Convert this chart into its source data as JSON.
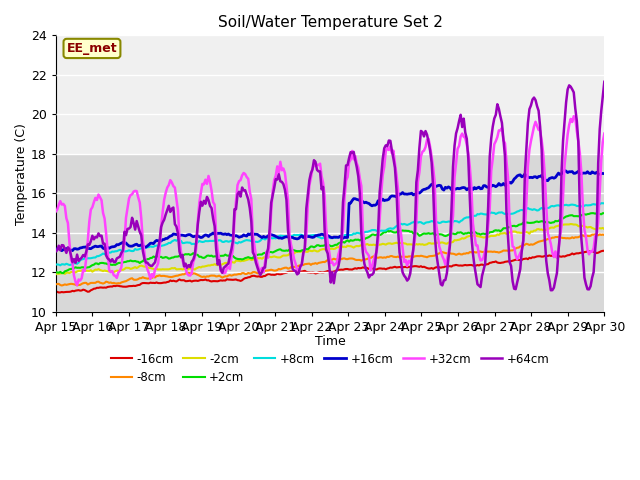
{
  "title": "Soil/Water Temperature Set 2",
  "xlabel": "Time",
  "ylabel": "Temperature (C)",
  "ylim": [
    10,
    24
  ],
  "xlim": [
    0,
    15
  ],
  "x_tick_labels": [
    "Apr 15",
    "Apr 16",
    "Apr 17",
    "Apr 18",
    "Apr 19",
    "Apr 20",
    "Apr 21",
    "Apr 22",
    "Apr 23",
    "Apr 24",
    "Apr 25",
    "Apr 26",
    "Apr 27",
    "Apr 28",
    "Apr 29",
    "Apr 30"
  ],
  "series_labels": [
    "-16cm",
    "-8cm",
    "-2cm",
    "+2cm",
    "+8cm",
    "+16cm",
    "+32cm",
    "+64cm"
  ],
  "series_colors": [
    "#dd0000",
    "#ff8800",
    "#dddd00",
    "#00dd00",
    "#00dddd",
    "#0000cc",
    "#ff44ff",
    "#9900bb"
  ],
  "series_linewidths": [
    1.5,
    1.5,
    1.5,
    1.5,
    1.5,
    2.0,
    1.8,
    1.8
  ],
  "annotation_text": "EE_met",
  "background_color": "#ffffff",
  "plot_bg_color_light": "#f0f0f0",
  "plot_bg_color_dark": "#d8d8d8",
  "grid_color": "#ffffff",
  "n_points": 360,
  "days": 15
}
